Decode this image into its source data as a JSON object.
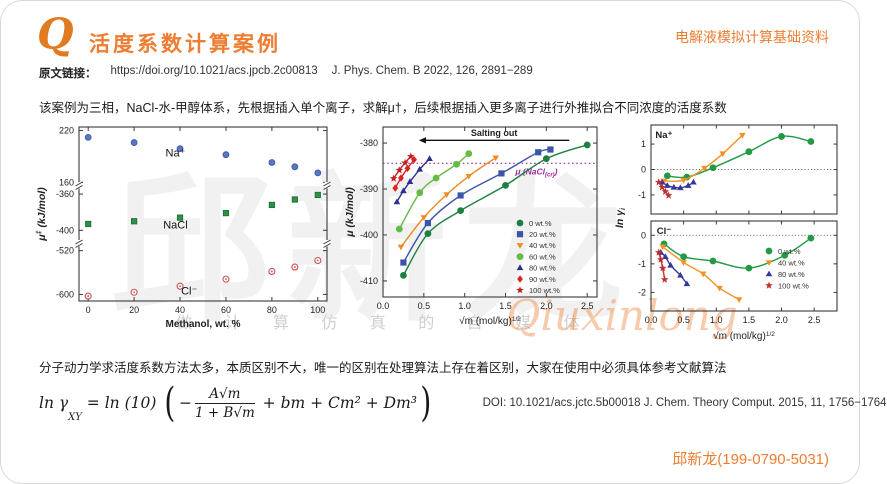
{
  "slide": {
    "logo": "Q",
    "title": "活度系数计算案例",
    "corner_note": "电解液模拟计算基础资料",
    "accent_color": "#ED7D31"
  },
  "source": {
    "label": "原文链接：",
    "url": "https://doi.org/10.1021/acs.jpcb.2c00813",
    "citation": "J. Phys. Chem. B 2022, 126, 2891−289"
  },
  "description": "该案例为三相，NaCl-水-甲醇体系，先根据插入单个离子，求解μ†，后续根据插入更多离子进行外推拟合不同浓度的活度系数",
  "note": "分子动力学求活度系数方法太多，本质区别不大，唯一的区别在处理算法上存在着区别，大家在使用中必须具体参考文献算法",
  "formula": {
    "lhs": "ln γ",
    "lhs_sub": "XY",
    "eq": " = ln (10) ",
    "paren_open": "(",
    "minus": "−",
    "numerator": "A√m",
    "denominator": "1 + B√m",
    "tail": " + bm + Cm² + Dm³",
    "paren_close": ")"
  },
  "formula_citation": "DOI: 10.1021/acs.jctc.5b00018  J. Chem. Theory Comput. 2015, 11, 1756−1764",
  "contact": "邱新龙(199-0790-5031)",
  "watermark": {
    "big_text": "邱新龙",
    "row_text": "做 计 算 仿 真 的 自 媒 体",
    "script_text": "Qiuxinlong"
  },
  "chart_data": [
    {
      "id": "chemical-potential-vs-methanol",
      "type": "scatter",
      "broken_axis": true,
      "xlabel": "Methanol, wt. %",
      "ylabel_main": "μ",
      "ylabel_sup": "‡",
      "ylabel_rest": " (kJ/mol)",
      "xlim": [
        -4,
        104
      ],
      "x_ticks": [
        0,
        20,
        40,
        60,
        80,
        100
      ],
      "bands": [
        {
          "ticks": [
            220,
            160
          ],
          "top": 224,
          "bottom": 157
        },
        {
          "ticks": [
            -360,
            -400
          ],
          "top": -350,
          "bottom": -414
        },
        {
          "ticks": [
            -520,
            -600
          ],
          "top": -506,
          "bottom": -612
        }
      ],
      "series": [
        {
          "name": "Na+",
          "label": "Na⁺",
          "band": 0,
          "marker": "circle",
          "color": "#5b76c0",
          "edge": "#3a57a5",
          "x": [
            0,
            20,
            40,
            60,
            80,
            90,
            100
          ],
          "y": [
            212,
            206,
            199,
            192,
            183,
            178,
            171
          ],
          "label_at": [
            38,
            190
          ]
        },
        {
          "name": "NaCl",
          "label": "NaCl",
          "band": 1,
          "marker": "square",
          "color": "#2e9147",
          "edge": "#1e6b33",
          "x": [
            0,
            20,
            40,
            60,
            80,
            90,
            100
          ],
          "y": [
            -393,
            -390,
            -386,
            -381,
            -372,
            -366,
            -361
          ],
          "label_at": [
            38,
            -398
          ]
        },
        {
          "name": "Cl-",
          "label": "Cl⁻",
          "band": 2,
          "marker": "circle-open",
          "color": "#c85050",
          "x": [
            0,
            20,
            40,
            60,
            80,
            90,
            100
          ],
          "y": [
            -603,
            -596,
            -585,
            -572,
            -558,
            -550,
            -538
          ],
          "label_at": [
            44,
            -600
          ]
        }
      ]
    },
    {
      "id": "mu-vs-sqrt-molality",
      "type": "line-scatter",
      "xlabel_main": "√m (mol/kg)",
      "xlabel_sup": "1/2",
      "ylabel_main": "μ",
      "ylabel_sup": "",
      "ylabel_rest": " (kJ/mol)",
      "xlim": [
        0,
        2.62
      ],
      "ylim": [
        -413.5,
        -376.5
      ],
      "x_ticks": [
        0.0,
        0.5,
        1.0,
        1.5,
        2.0,
        2.5
      ],
      "y_ticks": [
        -380,
        -390,
        -400,
        -410
      ],
      "hline": {
        "y": -384.4,
        "color": "#a12ba1",
        "label_main": "μ (NaCl",
        "label_sub": "(cr)",
        "label_close": ")"
      },
      "arrow": {
        "text": "Salting out",
        "y": -379.4,
        "x_from": 2.28,
        "x_to": 0.44
      },
      "series": [
        {
          "label": "0 wt.%",
          "marker": "circle",
          "color": "#1e8040",
          "x": [
            0.25,
            0.55,
            0.95,
            1.5,
            2.0,
            2.5
          ],
          "y": [
            -408.8,
            -399.7,
            -394.7,
            -389.2,
            -383.4,
            -380.4
          ]
        },
        {
          "label": "20 wt.%",
          "marker": "square",
          "color": "#3c55a8",
          "x": [
            0.25,
            0.55,
            0.95,
            1.45,
            1.9,
            2.05
          ],
          "y": [
            -406.0,
            -397.4,
            -391.4,
            -386.6,
            -382.0,
            -381.4
          ]
        },
        {
          "label": "40 wt.%",
          "marker": "tri-down",
          "color": "#f08a21",
          "x": [
            0.22,
            0.5,
            0.78,
            1.05,
            1.38
          ],
          "y": [
            -402.6,
            -396.2,
            -391.2,
            -387.2,
            -383.2
          ]
        },
        {
          "label": "60 wt.%",
          "marker": "circle",
          "color": "#66bb44",
          "x": [
            0.2,
            0.45,
            0.65,
            0.9,
            1.05
          ],
          "y": [
            -398.7,
            -390.8,
            -387.6,
            -384.6,
            -382.3
          ]
        },
        {
          "label": "80 wt.%",
          "marker": "tri-up",
          "color": "#2b2f90",
          "x": [
            0.17,
            0.25,
            0.33,
            0.45,
            0.57
          ],
          "y": [
            -392.8,
            -390.4,
            -388.4,
            -385.7,
            -383.4
          ]
        },
        {
          "label": "90 wt.%",
          "marker": "diamond",
          "color": "#dd2222",
          "x": [
            0.15,
            0.22,
            0.3,
            0.38
          ],
          "y": [
            -389.8,
            -387.6,
            -385.5,
            -383.6
          ]
        },
        {
          "label": "100 wt.%",
          "marker": "star",
          "color": "#c02020",
          "x": [
            0.13,
            0.2,
            0.27,
            0.34
          ],
          "y": [
            -387.7,
            -385.9,
            -384.3,
            -382.9
          ]
        }
      ]
    },
    {
      "id": "ln-gamma-vs-sqrt-molality",
      "type": "line-scatter",
      "xlabel_main": "√m (mol/kg)",
      "xlabel_sup": "1/2",
      "ylabel_main": "ln γ",
      "ylabel_sub": "i",
      "xlim": [
        0,
        2.85
      ],
      "x_ticks": [
        0.0,
        0.5,
        1.0,
        1.5,
        2.0,
        2.5
      ],
      "panels": [
        {
          "label": "Na⁺",
          "ylim": [
            -1.75,
            1.75
          ],
          "y_ticks": [
            1,
            0,
            -1
          ],
          "zero_line": true,
          "series": [
            {
              "label": "0 wt.%",
              "marker": "circle",
              "color": "#229a44",
              "x": [
                0.25,
                0.55,
                0.95,
                1.5,
                2.0,
                2.45
              ],
              "y": [
                -0.25,
                -0.3,
                0.07,
                0.7,
                1.3,
                1.1
              ]
            },
            {
              "label": "40 wt.%",
              "marker": "tri-down",
              "color": "#f39224",
              "x": [
                0.2,
                0.5,
                0.82,
                1.1,
                1.4
              ],
              "y": [
                -0.45,
                -0.42,
                0.05,
                0.62,
                1.35
              ]
            },
            {
              "label": "80 wt.%",
              "marker": "tri-up",
              "color": "#34379b",
              "x": [
                0.17,
                0.25,
                0.35,
                0.45,
                0.57,
                0.65
              ],
              "y": [
                -0.5,
                -0.63,
                -0.7,
                -0.72,
                -0.63,
                -0.5
              ]
            },
            {
              "label": "100 wt.%",
              "marker": "star",
              "color": "#c03030",
              "x": [
                0.12,
                0.17,
                0.22,
                0.27
              ],
              "y": [
                -0.5,
                -0.7,
                -0.87,
                -1.02
              ]
            }
          ]
        },
        {
          "label": "Cl⁻",
          "ylim": [
            -2.65,
            0.5
          ],
          "y_ticks": [
            0,
            -1,
            -2
          ],
          "zero_line": true,
          "series": [
            {
              "label": "0 wt.%",
              "marker": "circle",
              "color": "#229a44",
              "x": [
                0.2,
                0.5,
                0.95,
                1.5,
                2.05,
                2.45
              ],
              "y": [
                -0.3,
                -0.75,
                -0.9,
                -1.15,
                -0.7,
                -0.1
              ]
            },
            {
              "label": "40 wt.%",
              "marker": "tri-down",
              "color": "#f39224",
              "x": [
                0.18,
                0.5,
                0.8,
                1.05,
                1.35
              ],
              "y": [
                -0.4,
                -0.95,
                -1.35,
                -1.85,
                -2.25
              ]
            },
            {
              "label": "80 wt.%",
              "marker": "tri-up",
              "color": "#34379b",
              "x": [
                0.15,
                0.22,
                0.3,
                0.45,
                0.55
              ],
              "y": [
                -0.6,
                -0.75,
                -1.05,
                -1.4,
                -1.7
              ]
            },
            {
              "label": "100 wt.%",
              "marker": "star",
              "color": "#c03030",
              "x": [
                0.12,
                0.15,
                0.18,
                0.21
              ],
              "y": [
                -0.6,
                -0.85,
                -1.15,
                -1.55
              ]
            }
          ]
        }
      ],
      "legend": [
        "0 wt.%",
        "40 wt.%",
        "80 wt.%",
        "100 wt.%"
      ]
    }
  ]
}
